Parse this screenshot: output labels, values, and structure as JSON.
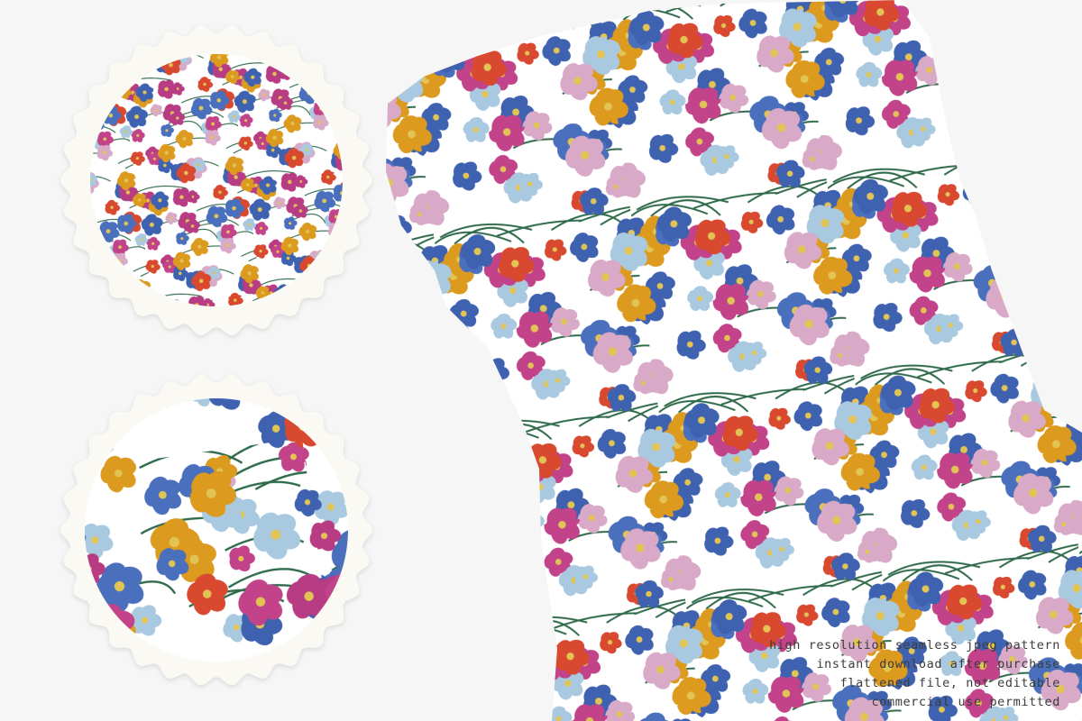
{
  "caption": {
    "lines": [
      "high resolution seamless jpeg pattern",
      "instant download after purchase",
      "flattened file, not editable",
      "commercial use permitted"
    ]
  }
}
